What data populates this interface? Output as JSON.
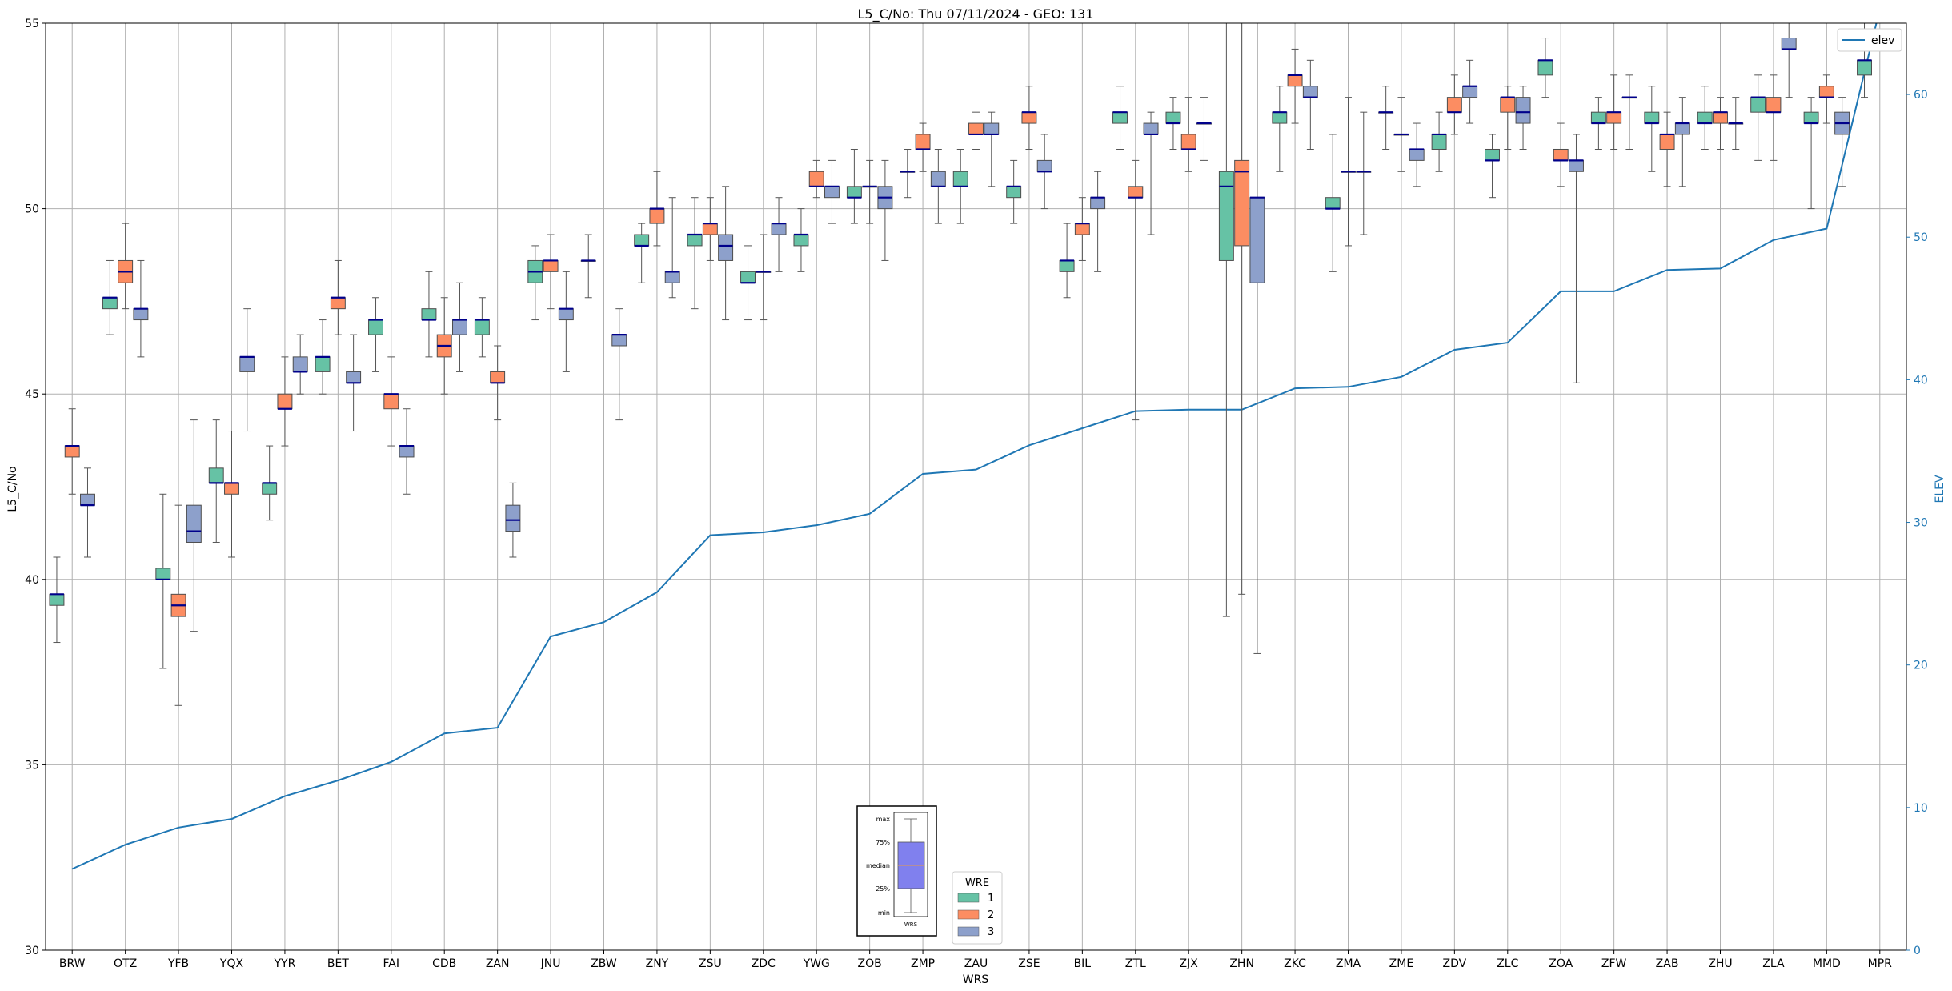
{
  "chart_data": {
    "type": "box",
    "title": "L5_C/No: Thu 07/11/2024 - GEO: 131",
    "xlabel": "WRS",
    "ylabel": "L5_C/No",
    "y2label": "ELEV",
    "ylim": [
      30,
      55
    ],
    "y2lim": [
      0,
      65
    ],
    "yticks": [
      30,
      35,
      40,
      45,
      50,
      55
    ],
    "y2ticks": [
      0,
      10,
      20,
      30,
      40,
      50,
      60
    ],
    "grid": true,
    "colors": {
      "1": "#66c2a5",
      "2": "#fc8d62",
      "3": "#8da0cb",
      "median": "#00008b",
      "elev": "#1f77b4"
    },
    "categories": [
      "BRW",
      "OTZ",
      "YFB",
      "YQX",
      "YYR",
      "BET",
      "FAI",
      "CDB",
      "ZAN",
      "JNU",
      "ZBW",
      "ZNY",
      "ZSU",
      "ZDC",
      "YWG",
      "ZOB",
      "ZMP",
      "ZAU",
      "ZSE",
      "BIL",
      "ZTL",
      "ZJX",
      "ZHN",
      "ZKC",
      "ZMA",
      "ZME",
      "ZDV",
      "ZLC",
      "ZOA",
      "ZFW",
      "ZAB",
      "ZHU",
      "ZLA",
      "MMD",
      "MPR"
    ],
    "legend": {
      "title": "WRE",
      "entries": [
        "1",
        "2",
        "3"
      ],
      "location": "lower center"
    },
    "elev_legend": {
      "label": "elev",
      "location": "upper right"
    },
    "elev": [
      5.7,
      7.4,
      8.6,
      9.2,
      10.8,
      11.9,
      13.2,
      15.2,
      15.6,
      22.0,
      23.0,
      25.1,
      29.1,
      29.3,
      29.8,
      30.6,
      33.4,
      33.7,
      35.4,
      36.6,
      37.8,
      37.9,
      37.9,
      39.4,
      39.5,
      40.2,
      42.1,
      42.6,
      46.2,
      46.2,
      47.7,
      47.8,
      49.8,
      50.6,
      66.0
    ],
    "boxes": {
      "1": [
        {
          "wrs": "BRW",
          "min": 38.3,
          "q1": 39.3,
          "median": 39.6,
          "q3": 39.6,
          "max": 40.6
        },
        {
          "wrs": "OTZ",
          "min": 46.6,
          "q1": 47.3,
          "median": 47.6,
          "q3": 47.6,
          "max": 48.6
        },
        {
          "wrs": "YFB",
          "min": 37.6,
          "q1": 40.0,
          "median": 40.0,
          "q3": 40.3,
          "max": 42.3
        },
        {
          "wrs": "YQX",
          "min": 41.0,
          "q1": 42.6,
          "median": 42.6,
          "q3": 43.0,
          "max": 44.3
        },
        {
          "wrs": "YYR",
          "min": 41.6,
          "q1": 42.3,
          "median": 42.6,
          "q3": 42.6,
          "max": 43.6
        },
        {
          "wrs": "BET",
          "min": 45.0,
          "q1": 45.6,
          "median": 46.0,
          "q3": 46.0,
          "max": 47.0
        },
        {
          "wrs": "FAI",
          "min": 45.6,
          "q1": 46.6,
          "median": 47.0,
          "q3": 47.0,
          "max": 47.6
        },
        {
          "wrs": "CDB",
          "min": 46.0,
          "q1": 47.0,
          "median": 47.0,
          "q3": 47.3,
          "max": 48.3
        },
        {
          "wrs": "ZAN",
          "min": 46.0,
          "q1": 46.6,
          "median": 47.0,
          "q3": 47.0,
          "max": 47.6
        },
        {
          "wrs": "JNU",
          "min": 47.0,
          "q1": 48.0,
          "median": 48.3,
          "q3": 48.6,
          "max": 49.0
        },
        {
          "wrs": "ZBW",
          "min": 47.6,
          "q1": 48.6,
          "median": 48.6,
          "q3": 48.6,
          "max": 49.3
        },
        {
          "wrs": "ZNY",
          "min": 48.0,
          "q1": 49.0,
          "median": 49.0,
          "q3": 49.3,
          "max": 49.6
        },
        {
          "wrs": "ZSU",
          "min": 47.3,
          "q1": 49.0,
          "median": 49.3,
          "q3": 49.3,
          "max": 50.3
        },
        {
          "wrs": "ZDC",
          "min": 47.0,
          "q1": 48.0,
          "median": 48.0,
          "q3": 48.3,
          "max": 49.0
        },
        {
          "wrs": "YWG",
          "min": 48.3,
          "q1": 49.0,
          "median": 49.3,
          "q3": 49.3,
          "max": 50.0
        },
        {
          "wrs": "ZOB",
          "min": 49.6,
          "q1": 50.3,
          "median": 50.3,
          "q3": 50.6,
          "max": 51.6
        },
        {
          "wrs": "ZMP",
          "min": 50.3,
          "q1": 51.0,
          "median": 51.0,
          "q3": 51.0,
          "max": 51.6
        },
        {
          "wrs": "ZAU",
          "min": 49.6,
          "q1": 50.6,
          "median": 50.6,
          "q3": 51.0,
          "max": 51.6
        },
        {
          "wrs": "ZSE",
          "min": 49.6,
          "q1": 50.3,
          "median": 50.6,
          "q3": 50.6,
          "max": 51.3
        },
        {
          "wrs": "BIL",
          "min": 47.6,
          "q1": 48.3,
          "median": 48.6,
          "q3": 48.6,
          "max": 49.6
        },
        {
          "wrs": "ZTL",
          "min": 51.6,
          "q1": 52.3,
          "median": 52.6,
          "q3": 52.6,
          "max": 53.3
        },
        {
          "wrs": "ZJX",
          "min": 51.6,
          "q1": 52.3,
          "median": 52.3,
          "q3": 52.6,
          "max": 53.0
        },
        {
          "wrs": "ZHN",
          "min": 39.0,
          "q1": 48.6,
          "median": 50.6,
          "q3": 51.0,
          "max": 55.0
        },
        {
          "wrs": "ZKC",
          "min": 51.0,
          "q1": 52.3,
          "median": 52.6,
          "q3": 52.6,
          "max": 53.3
        },
        {
          "wrs": "ZMA",
          "min": 48.3,
          "q1": 50.0,
          "median": 50.0,
          "q3": 50.3,
          "max": 52.0
        },
        {
          "wrs": "ZME",
          "min": 51.6,
          "q1": 52.6,
          "median": 52.6,
          "q3": 52.6,
          "max": 53.3
        },
        {
          "wrs": "ZDV",
          "min": 51.0,
          "q1": 51.6,
          "median": 52.0,
          "q3": 52.0,
          "max": 52.6
        },
        {
          "wrs": "ZLC",
          "min": 50.3,
          "q1": 51.3,
          "median": 51.3,
          "q3": 51.6,
          "max": 52.0
        },
        {
          "wrs": "ZOA",
          "min": 53.0,
          "q1": 53.6,
          "median": 54.0,
          "q3": 54.0,
          "max": 54.6
        },
        {
          "wrs": "ZFW",
          "min": 51.6,
          "q1": 52.3,
          "median": 52.3,
          "q3": 52.6,
          "max": 53.0
        },
        {
          "wrs": "ZAB",
          "min": 51.0,
          "q1": 52.3,
          "median": 52.3,
          "q3": 52.6,
          "max": 53.3
        },
        {
          "wrs": "ZHU",
          "min": 51.6,
          "q1": 52.3,
          "median": 52.3,
          "q3": 52.6,
          "max": 53.3
        },
        {
          "wrs": "ZLA",
          "min": 51.3,
          "q1": 52.6,
          "median": 53.0,
          "q3": 53.0,
          "max": 53.6
        },
        {
          "wrs": "MMD",
          "min": 50.0,
          "q1": 52.3,
          "median": 52.3,
          "q3": 52.6,
          "max": 53.0
        },
        {
          "wrs": "MPR",
          "min": 53.0,
          "q1": 53.6,
          "median": 54.0,
          "q3": 54.0,
          "max": 55.0
        }
      ],
      "2": [
        {
          "wrs": "BRW",
          "min": 42.3,
          "q1": 43.3,
          "median": 43.6,
          "q3": 43.6,
          "max": 44.6
        },
        {
          "wrs": "OTZ",
          "min": 47.3,
          "q1": 48.0,
          "median": 48.3,
          "q3": 48.6,
          "max": 49.6
        },
        {
          "wrs": "YFB",
          "min": 36.6,
          "q1": 39.0,
          "median": 39.3,
          "q3": 39.6,
          "max": 42.0
        },
        {
          "wrs": "YQX",
          "min": 40.6,
          "q1": 42.3,
          "median": 42.6,
          "q3": 42.6,
          "max": 44.0
        },
        {
          "wrs": "YYR",
          "min": 43.6,
          "q1": 44.6,
          "median": 44.6,
          "q3": 45.0,
          "max": 46.0
        },
        {
          "wrs": "BET",
          "min": 46.6,
          "q1": 47.3,
          "median": 47.6,
          "q3": 47.6,
          "max": 48.6
        },
        {
          "wrs": "FAI",
          "min": 43.6,
          "q1": 44.6,
          "median": 45.0,
          "q3": 45.0,
          "max": 46.0
        },
        {
          "wrs": "CDB",
          "min": 45.0,
          "q1": 46.0,
          "median": 46.3,
          "q3": 46.6,
          "max": 47.6
        },
        {
          "wrs": "ZAN",
          "min": 44.3,
          "q1": 45.3,
          "median": 45.3,
          "q3": 45.6,
          "max": 46.3
        },
        {
          "wrs": "JNU",
          "min": 47.3,
          "q1": 48.3,
          "median": 48.6,
          "q3": 48.6,
          "max": 49.3
        },
        {
          "wrs": "ZNY",
          "min": 49.0,
          "q1": 49.6,
          "median": 50.0,
          "q3": 50.0,
          "max": 51.0
        },
        {
          "wrs": "ZSU",
          "min": 48.6,
          "q1": 49.3,
          "median": 49.6,
          "q3": 49.6,
          "max": 50.3
        },
        {
          "wrs": "ZDC",
          "min": 47.0,
          "q1": 48.3,
          "median": 48.3,
          "q3": 48.3,
          "max": 49.3
        },
        {
          "wrs": "YWG",
          "min": 50.3,
          "q1": 50.6,
          "median": 50.6,
          "q3": 51.0,
          "max": 51.3
        },
        {
          "wrs": "ZOB",
          "min": 49.6,
          "q1": 50.6,
          "median": 50.6,
          "q3": 50.6,
          "max": 51.3
        },
        {
          "wrs": "ZMP",
          "min": 51.0,
          "q1": 51.6,
          "median": 51.6,
          "q3": 52.0,
          "max": 52.3
        },
        {
          "wrs": "ZAU",
          "min": 51.6,
          "q1": 52.0,
          "median": 52.0,
          "q3": 52.3,
          "max": 52.6
        },
        {
          "wrs": "ZSE",
          "min": 51.6,
          "q1": 52.3,
          "median": 52.6,
          "q3": 52.6,
          "max": 53.3
        },
        {
          "wrs": "BIL",
          "min": 48.6,
          "q1": 49.3,
          "median": 49.6,
          "q3": 49.6,
          "max": 50.3
        },
        {
          "wrs": "ZTL",
          "min": 44.3,
          "q1": 50.3,
          "median": 50.3,
          "q3": 50.6,
          "max": 51.3
        },
        {
          "wrs": "ZJX",
          "min": 51.0,
          "q1": 51.6,
          "median": 51.6,
          "q3": 52.0,
          "max": 53.0
        },
        {
          "wrs": "ZHN",
          "min": 39.6,
          "q1": 49.0,
          "median": 51.0,
          "q3": 51.3,
          "max": 55.0
        },
        {
          "wrs": "ZKC",
          "min": 52.3,
          "q1": 53.3,
          "median": 53.6,
          "q3": 53.6,
          "max": 54.3
        },
        {
          "wrs": "ZMA",
          "min": 49.0,
          "q1": 51.0,
          "median": 51.0,
          "q3": 51.0,
          "max": 53.0
        },
        {
          "wrs": "ZME",
          "min": 51.0,
          "q1": 52.0,
          "median": 52.0,
          "q3": 52.0,
          "max": 53.0
        },
        {
          "wrs": "ZDV",
          "min": 52.0,
          "q1": 52.6,
          "median": 52.6,
          "q3": 53.0,
          "max": 53.6
        },
        {
          "wrs": "ZLC",
          "min": 51.6,
          "q1": 52.6,
          "median": 53.0,
          "q3": 53.0,
          "max": 53.3
        },
        {
          "wrs": "ZOA",
          "min": 50.6,
          "q1": 51.3,
          "median": 51.3,
          "q3": 51.6,
          "max": 52.3
        },
        {
          "wrs": "ZFW",
          "min": 51.6,
          "q1": 52.3,
          "median": 52.6,
          "q3": 52.6,
          "max": 53.6
        },
        {
          "wrs": "ZAB",
          "min": 50.6,
          "q1": 51.6,
          "median": 52.0,
          "q3": 52.0,
          "max": 52.6
        },
        {
          "wrs": "ZHU",
          "min": 51.6,
          "q1": 52.3,
          "median": 52.6,
          "q3": 52.6,
          "max": 53.0
        },
        {
          "wrs": "ZLA",
          "min": 51.3,
          "q1": 52.6,
          "median": 52.6,
          "q3": 53.0,
          "max": 53.6
        },
        {
          "wrs": "MMD",
          "min": 52.3,
          "q1": 53.0,
          "median": 53.0,
          "q3": 53.3,
          "max": 53.6
        }
      ],
      "3": [
        {
          "wrs": "BRW",
          "min": 40.6,
          "q1": 42.0,
          "median": 42.0,
          "q3": 42.3,
          "max": 43.0
        },
        {
          "wrs": "OTZ",
          "min": 46.0,
          "q1": 47.0,
          "median": 47.3,
          "q3": 47.3,
          "max": 48.6
        },
        {
          "wrs": "YFB",
          "min": 38.6,
          "q1": 41.0,
          "median": 41.3,
          "q3": 42.0,
          "max": 44.3
        },
        {
          "wrs": "YQX",
          "min": 44.0,
          "q1": 45.6,
          "median": 46.0,
          "q3": 46.0,
          "max": 47.3
        },
        {
          "wrs": "YYR",
          "min": 45.0,
          "q1": 45.6,
          "median": 45.6,
          "q3": 46.0,
          "max": 46.6
        },
        {
          "wrs": "BET",
          "min": 44.0,
          "q1": 45.3,
          "median": 45.3,
          "q3": 45.6,
          "max": 46.6
        },
        {
          "wrs": "FAI",
          "min": 42.3,
          "q1": 43.3,
          "median": 43.6,
          "q3": 43.6,
          "max": 44.6
        },
        {
          "wrs": "CDB",
          "min": 45.6,
          "q1": 46.6,
          "median": 47.0,
          "q3": 47.0,
          "max": 48.0
        },
        {
          "wrs": "ZAN",
          "min": 40.6,
          "q1": 41.3,
          "median": 41.6,
          "q3": 42.0,
          "max": 42.6
        },
        {
          "wrs": "JNU",
          "min": 45.6,
          "q1": 47.0,
          "median": 47.3,
          "q3": 47.3,
          "max": 48.3
        },
        {
          "wrs": "ZBW",
          "min": 44.3,
          "q1": 46.3,
          "median": 46.6,
          "q3": 46.6,
          "max": 47.3
        },
        {
          "wrs": "ZNY",
          "min": 47.6,
          "q1": 48.0,
          "median": 48.3,
          "q3": 48.3,
          "max": 50.3
        },
        {
          "wrs": "ZSU",
          "min": 47.0,
          "q1": 48.6,
          "median": 49.0,
          "q3": 49.3,
          "max": 50.6
        },
        {
          "wrs": "ZDC",
          "min": 48.3,
          "q1": 49.3,
          "median": 49.6,
          "q3": 49.6,
          "max": 50.3
        },
        {
          "wrs": "YWG",
          "min": 49.6,
          "q1": 50.3,
          "median": 50.6,
          "q3": 50.6,
          "max": 51.3
        },
        {
          "wrs": "ZOB",
          "min": 48.6,
          "q1": 50.0,
          "median": 50.3,
          "q3": 50.6,
          "max": 51.3
        },
        {
          "wrs": "ZMP",
          "min": 49.6,
          "q1": 50.6,
          "median": 50.6,
          "q3": 51.0,
          "max": 51.6
        },
        {
          "wrs": "ZAU",
          "min": 50.6,
          "q1": 52.0,
          "median": 52.0,
          "q3": 52.3,
          "max": 52.6
        },
        {
          "wrs": "ZSE",
          "min": 50.0,
          "q1": 51.0,
          "median": 51.0,
          "q3": 51.3,
          "max": 52.0
        },
        {
          "wrs": "BIL",
          "min": 48.3,
          "q1": 50.0,
          "median": 50.3,
          "q3": 50.3,
          "max": 51.0
        },
        {
          "wrs": "ZTL",
          "min": 49.3,
          "q1": 52.0,
          "median": 52.0,
          "q3": 52.3,
          "max": 52.6
        },
        {
          "wrs": "ZJX",
          "min": 51.3,
          "q1": 52.3,
          "median": 52.3,
          "q3": 52.3,
          "max": 53.0
        },
        {
          "wrs": "ZHN",
          "min": 38.0,
          "q1": 48.0,
          "median": 50.3,
          "q3": 50.3,
          "max": 55.0
        },
        {
          "wrs": "ZKC",
          "min": 51.6,
          "q1": 53.0,
          "median": 53.0,
          "q3": 53.3,
          "max": 54.0
        },
        {
          "wrs": "ZMA",
          "min": 49.3,
          "q1": 51.0,
          "median": 51.0,
          "q3": 51.0,
          "max": 52.6
        },
        {
          "wrs": "ZME",
          "min": 50.6,
          "q1": 51.3,
          "median": 51.6,
          "q3": 51.6,
          "max": 52.3
        },
        {
          "wrs": "ZDV",
          "min": 52.3,
          "q1": 53.0,
          "median": 53.3,
          "q3": 53.3,
          "max": 54.0
        },
        {
          "wrs": "ZLC",
          "min": 51.6,
          "q1": 52.3,
          "median": 52.6,
          "q3": 53.0,
          "max": 53.3
        },
        {
          "wrs": "ZOA",
          "min": 45.3,
          "q1": 51.0,
          "median": 51.3,
          "q3": 51.3,
          "max": 52.0
        },
        {
          "wrs": "ZFW",
          "min": 51.6,
          "q1": 53.0,
          "median": 53.0,
          "q3": 53.0,
          "max": 53.6
        },
        {
          "wrs": "ZAB",
          "min": 50.6,
          "q1": 52.0,
          "median": 52.3,
          "q3": 52.3,
          "max": 53.0
        },
        {
          "wrs": "ZHU",
          "min": 51.6,
          "q1": 52.3,
          "median": 52.3,
          "q3": 52.3,
          "max": 53.0
        },
        {
          "wrs": "ZLA",
          "min": 53.0,
          "q1": 54.3,
          "median": 54.3,
          "q3": 54.6,
          "max": 55.0
        },
        {
          "wrs": "MMD",
          "min": 50.6,
          "q1": 52.0,
          "median": 52.3,
          "q3": 52.6,
          "max": 53.0
        }
      ]
    },
    "inset": {
      "labels": [
        "max",
        "75%",
        "median",
        "25%",
        "min"
      ],
      "xlabel": "WRS",
      "box_color": "#8080ee",
      "median_color": "#e69a4a"
    }
  }
}
